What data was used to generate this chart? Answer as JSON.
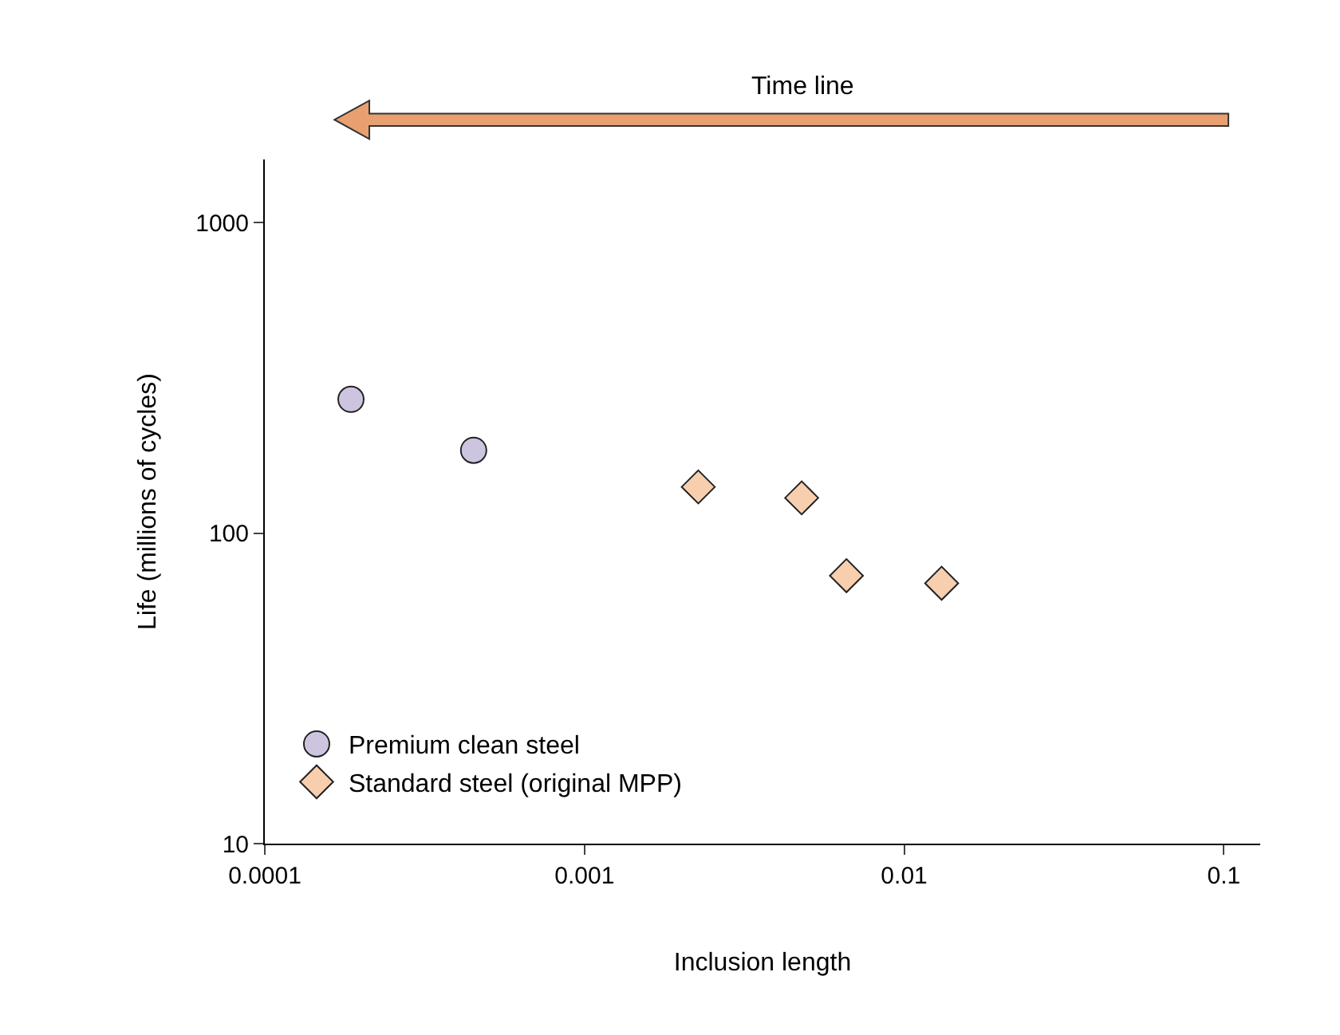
{
  "chart_data": {
    "type": "scatter",
    "log": "xy",
    "xlabel": "Inclusion length",
    "ylabel": "Life (millions of cycles)",
    "annotations": [
      "Time line"
    ],
    "xlim": [
      0.0001,
      0.13
    ],
    "ylim": [
      10,
      1600
    ],
    "xticks": [
      0.0001,
      0.001,
      0.01,
      0.1
    ],
    "yticks": [
      10,
      100,
      1000
    ],
    "legend": "bottom left",
    "series": [
      {
        "name": "Premium clean steel",
        "color": "#cdc5e0",
        "marker": "circle",
        "x": [
          0.000186,
          0.00045
        ],
        "values": [
          270,
          185
        ]
      },
      {
        "name": "Standard steel (original MPP)",
        "color": "#f8cfae",
        "marker": "diamond",
        "x": [
          0.00227,
          0.00478,
          0.0066,
          0.0131
        ],
        "values": [
          141,
          130,
          73,
          69
        ]
      }
    ]
  }
}
